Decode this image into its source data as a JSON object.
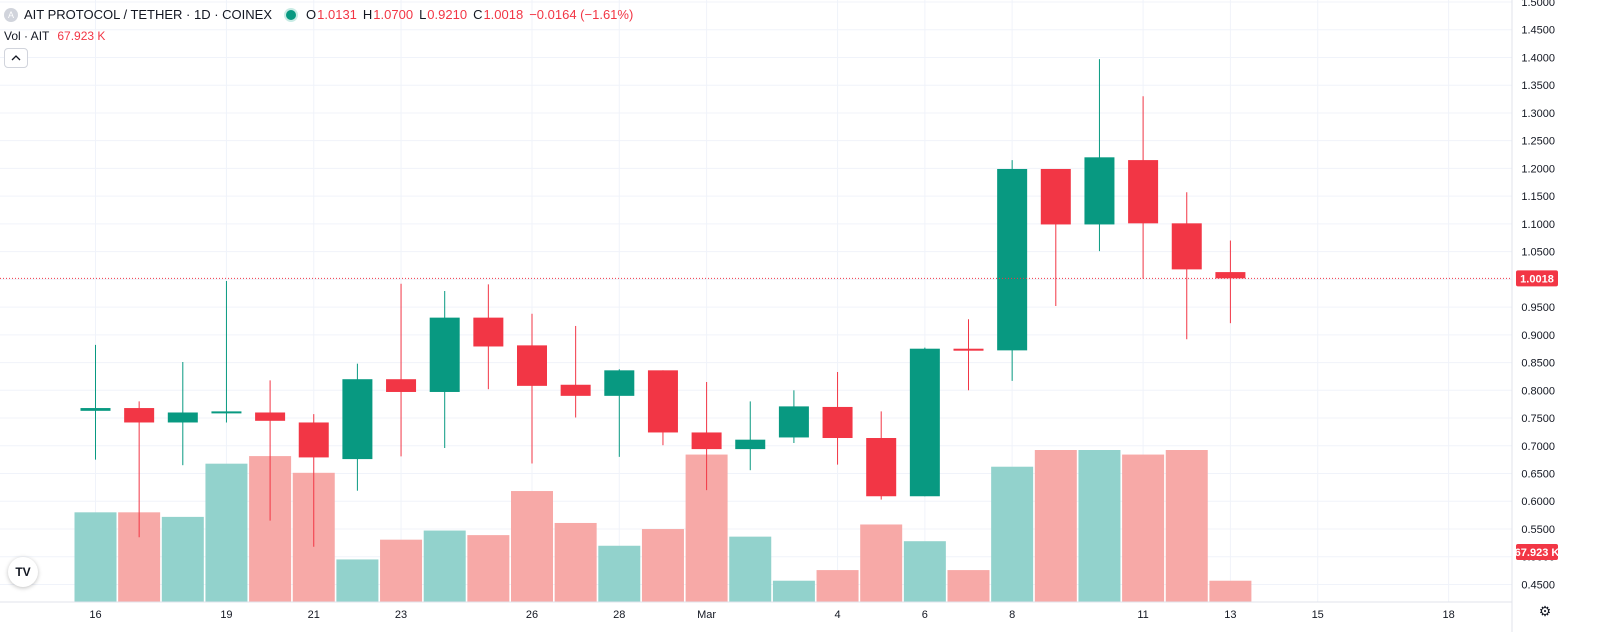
{
  "header": {
    "symbol_badge": "A",
    "title": "AIT PROTOCOL / TETHER · 1D · COINEX",
    "ohlc": {
      "o_key": "O",
      "o": "1.0131",
      "h_key": "H",
      "h": "1.0700",
      "l_key": "L",
      "l": "0.9210",
      "c_key": "C",
      "c": "1.0018",
      "change": "−0.0164 (−1.61%)"
    }
  },
  "volume_legend": {
    "label": "Vol · AIT",
    "value": "67.923 K"
  },
  "logo_text": "TV",
  "colors": {
    "up": "#089981",
    "down": "#f23645",
    "up_volume": "#92d2cc",
    "down_volume": "#f7a9a7",
    "grid": "#f0f3fa",
    "axis_text": "#131722"
  },
  "chart_data": {
    "type": "candlestick",
    "title": "AIT PROTOCOL / TETHER · 1D · COINEX",
    "y_ticks": [
      "1.5000",
      "1.4500",
      "1.4000",
      "1.3500",
      "1.3000",
      "1.2500",
      "1.2000",
      "1.1500",
      "1.1000",
      "1.0500",
      "1.0000",
      "0.9500",
      "0.9000",
      "0.8500",
      "0.8000",
      "0.7500",
      "0.7000",
      "0.6500",
      "0.6000",
      "0.5500",
      "0.5000",
      "0.4500"
    ],
    "ylim": [
      0.44,
      1.5
    ],
    "x_ticks": [
      {
        "label": "16",
        "index": 0
      },
      {
        "label": "19",
        "index": 3
      },
      {
        "label": "21",
        "index": 5
      },
      {
        "label": "23",
        "index": 7
      },
      {
        "label": "26",
        "index": 10
      },
      {
        "label": "28",
        "index": 12
      },
      {
        "label": "Mar",
        "index": 14
      },
      {
        "label": "4",
        "index": 17
      },
      {
        "label": "6",
        "index": 19
      },
      {
        "label": "8",
        "index": 21
      },
      {
        "label": "11",
        "index": 24
      },
      {
        "label": "13",
        "index": 26
      },
      {
        "label": "15",
        "index": 28
      },
      {
        "label": "18",
        "index": 31
      }
    ],
    "candles": [
      {
        "o": 0.763,
        "h": 0.882,
        "l": 0.675,
        "c": 0.768
      },
      {
        "o": 0.768,
        "h": 0.78,
        "l": 0.535,
        "c": 0.742
      },
      {
        "o": 0.742,
        "h": 0.851,
        "l": 0.665,
        "c": 0.76
      },
      {
        "o": 0.76,
        "h": 0.997,
        "l": 0.742,
        "c": 0.762
      },
      {
        "o": 0.76,
        "h": 0.818,
        "l": 0.565,
        "c": 0.745
      },
      {
        "o": 0.742,
        "h": 0.757,
        "l": 0.518,
        "c": 0.679
      },
      {
        "o": 0.676,
        "h": 0.848,
        "l": 0.619,
        "c": 0.82
      },
      {
        "o": 0.82,
        "h": 0.992,
        "l": 0.681,
        "c": 0.797
      },
      {
        "o": 0.797,
        "h": 0.979,
        "l": 0.696,
        "c": 0.931
      },
      {
        "o": 0.931,
        "h": 0.991,
        "l": 0.802,
        "c": 0.879
      },
      {
        "o": 0.881,
        "h": 0.938,
        "l": 0.668,
        "c": 0.808
      },
      {
        "o": 0.81,
        "h": 0.916,
        "l": 0.751,
        "c": 0.79
      },
      {
        "o": 0.79,
        "h": 0.838,
        "l": 0.68,
        "c": 0.836
      },
      {
        "o": 0.836,
        "h": 0.836,
        "l": 0.701,
        "c": 0.724
      },
      {
        "o": 0.724,
        "h": 0.815,
        "l": 0.62,
        "c": 0.694
      },
      {
        "o": 0.694,
        "h": 0.78,
        "l": 0.656,
        "c": 0.711
      },
      {
        "o": 0.715,
        "h": 0.8,
        "l": 0.705,
        "c": 0.771
      },
      {
        "o": 0.77,
        "h": 0.833,
        "l": 0.666,
        "c": 0.714
      },
      {
        "o": 0.714,
        "h": 0.762,
        "l": 0.603,
        "c": 0.609
      },
      {
        "o": 0.609,
        "h": 0.877,
        "l": 0.609,
        "c": 0.875
      },
      {
        "o": 0.875,
        "h": 0.928,
        "l": 0.8,
        "c": 0.872
      },
      {
        "o": 0.872,
        "h": 1.215,
        "l": 0.817,
        "c": 1.199
      },
      {
        "o": 1.199,
        "h": 1.199,
        "l": 0.952,
        "c": 1.099
      },
      {
        "o": 1.099,
        "h": 1.397,
        "l": 1.051,
        "c": 1.22
      },
      {
        "o": 1.215,
        "h": 1.33,
        "l": 1.001,
        "c": 1.101
      },
      {
        "o": 1.101,
        "h": 1.157,
        "l": 0.892,
        "c": 1.018
      },
      {
        "o": 1.0131,
        "h": 1.07,
        "l": 0.921,
        "c": 1.0018
      }
    ],
    "volume_relative": [
      0.59,
      0.59,
      0.56,
      0.91,
      0.96,
      0.85,
      0.28,
      0.41,
      0.47,
      0.44,
      0.73,
      0.52,
      0.37,
      0.48,
      0.97,
      0.43,
      0.14,
      0.21,
      0.51,
      0.4,
      0.21,
      0.89,
      1.0,
      1.0,
      0.97,
      1.0,
      0.14
    ],
    "last_price_label": "1.0018",
    "last_price": 1.0018,
    "volume_axis_label": "67.923 K",
    "grid": true
  }
}
